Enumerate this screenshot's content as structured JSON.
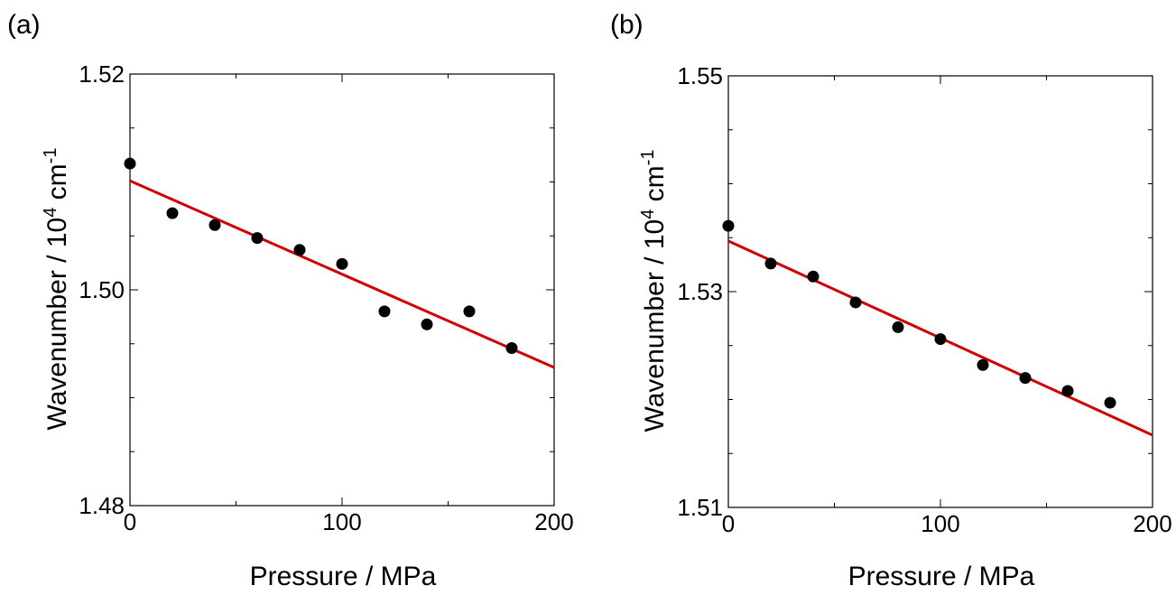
{
  "chart_data": [
    {
      "type": "scatter",
      "panel_label": "(a)",
      "xlabel": "Pressure / MPa",
      "ylabel": {
        "base": "Wavenumber / 10",
        "sup1": "4",
        "mid": " cm",
        "sup2": "-1"
      },
      "xlim": [
        0,
        200
      ],
      "ylim": [
        1.48,
        1.52
      ],
      "x_ticks": [
        0,
        100,
        200
      ],
      "x_tick_labels": [
        "0",
        "100",
        "200"
      ],
      "x_minor_ticks": [
        50,
        150
      ],
      "y_ticks": [
        1.48,
        1.5,
        1.52
      ],
      "y_tick_labels": [
        "1.48",
        "1.50",
        "1.52"
      ],
      "y_minor_ticks": [
        1.485,
        1.49,
        1.495,
        1.505,
        1.51,
        1.515
      ],
      "grid": false,
      "marker_color": "#000000",
      "fit_color": "#d10000",
      "points": [
        {
          "x": 0,
          "y": 1.5117
        },
        {
          "x": 20,
          "y": 1.5071
        },
        {
          "x": 40,
          "y": 1.506
        },
        {
          "x": 60,
          "y": 1.5048
        },
        {
          "x": 80,
          "y": 1.5037
        },
        {
          "x": 100,
          "y": 1.5024
        },
        {
          "x": 120,
          "y": 1.498
        },
        {
          "x": 140,
          "y": 1.4968
        },
        {
          "x": 160,
          "y": 1.498
        },
        {
          "x": 180,
          "y": 1.4946
        }
      ],
      "fit_line": {
        "x": [
          0,
          200
        ],
        "y": [
          1.5101,
          1.4928
        ]
      }
    },
    {
      "type": "scatter",
      "panel_label": "(b)",
      "xlabel": "Pressure / MPa",
      "ylabel": {
        "base": "Wavenumber / 10",
        "sup1": "4",
        "mid": " cm",
        "sup2": "-1"
      },
      "xlim": [
        0,
        200
      ],
      "ylim": [
        1.51,
        1.55
      ],
      "x_ticks": [
        0,
        100,
        200
      ],
      "x_tick_labels": [
        "0",
        "100",
        "200"
      ],
      "x_minor_ticks": [
        50,
        150
      ],
      "y_ticks": [
        1.51,
        1.53,
        1.55
      ],
      "y_tick_labels": [
        "1.51",
        "1.53",
        "1.55"
      ],
      "y_minor_ticks": [
        1.515,
        1.52,
        1.525,
        1.535,
        1.54,
        1.545
      ],
      "grid": false,
      "marker_color": "#000000",
      "fit_color": "#d10000",
      "points": [
        {
          "x": 0,
          "y": 1.5361
        },
        {
          "x": 20,
          "y": 1.5326
        },
        {
          "x": 40,
          "y": 1.5314
        },
        {
          "x": 60,
          "y": 1.529
        },
        {
          "x": 80,
          "y": 1.5267
        },
        {
          "x": 100,
          "y": 1.5256
        },
        {
          "x": 120,
          "y": 1.5232
        },
        {
          "x": 140,
          "y": 1.522
        },
        {
          "x": 160,
          "y": 1.5208
        },
        {
          "x": 180,
          "y": 1.5197
        }
      ],
      "fit_line": {
        "x": [
          0,
          200
        ],
        "y": [
          1.5347,
          1.5167
        ]
      }
    }
  ]
}
